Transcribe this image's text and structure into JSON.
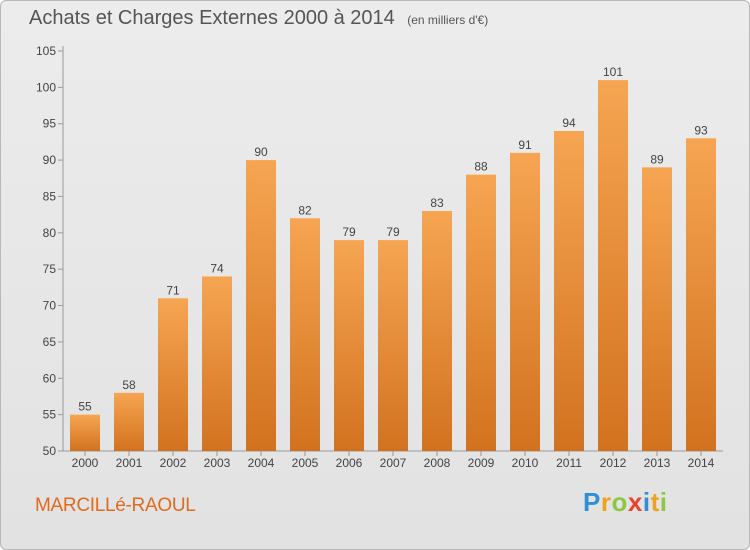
{
  "header": {
    "title": "Achats et Charges Externes 2000 à 2014",
    "unit": "(en milliers d'€)"
  },
  "footer": {
    "commune": "MARCILLé-RAOUL",
    "brand_letters": [
      "P",
      "r",
      "o",
      "x",
      "i",
      "t",
      "i"
    ],
    "brand_colors": [
      "#2f8fd8",
      "#f2a21a",
      "#8ec63f",
      "#e8452c",
      "#2f8fd8",
      "#f2a21a",
      "#8ec63f"
    ]
  },
  "chart_data": {
    "type": "bar",
    "title": "Achats et Charges Externes 2000 à 2014",
    "xlabel": "",
    "ylabel": "",
    "categories": [
      "2000",
      "2001",
      "2002",
      "2003",
      "2004",
      "2005",
      "2006",
      "2007",
      "2008",
      "2009",
      "2010",
      "2011",
      "2012",
      "2013",
      "2014"
    ],
    "values": [
      55,
      58,
      71,
      74,
      90,
      82,
      79,
      79,
      83,
      88,
      91,
      94,
      101,
      89,
      93
    ],
    "ylim": [
      50,
      105
    ],
    "yticks": [
      50,
      55,
      60,
      65,
      70,
      75,
      80,
      85,
      90,
      95,
      100,
      105
    ],
    "grid": false,
    "bar_color_top": "#f6a552",
    "bar_color_bottom": "#d2721f"
  }
}
